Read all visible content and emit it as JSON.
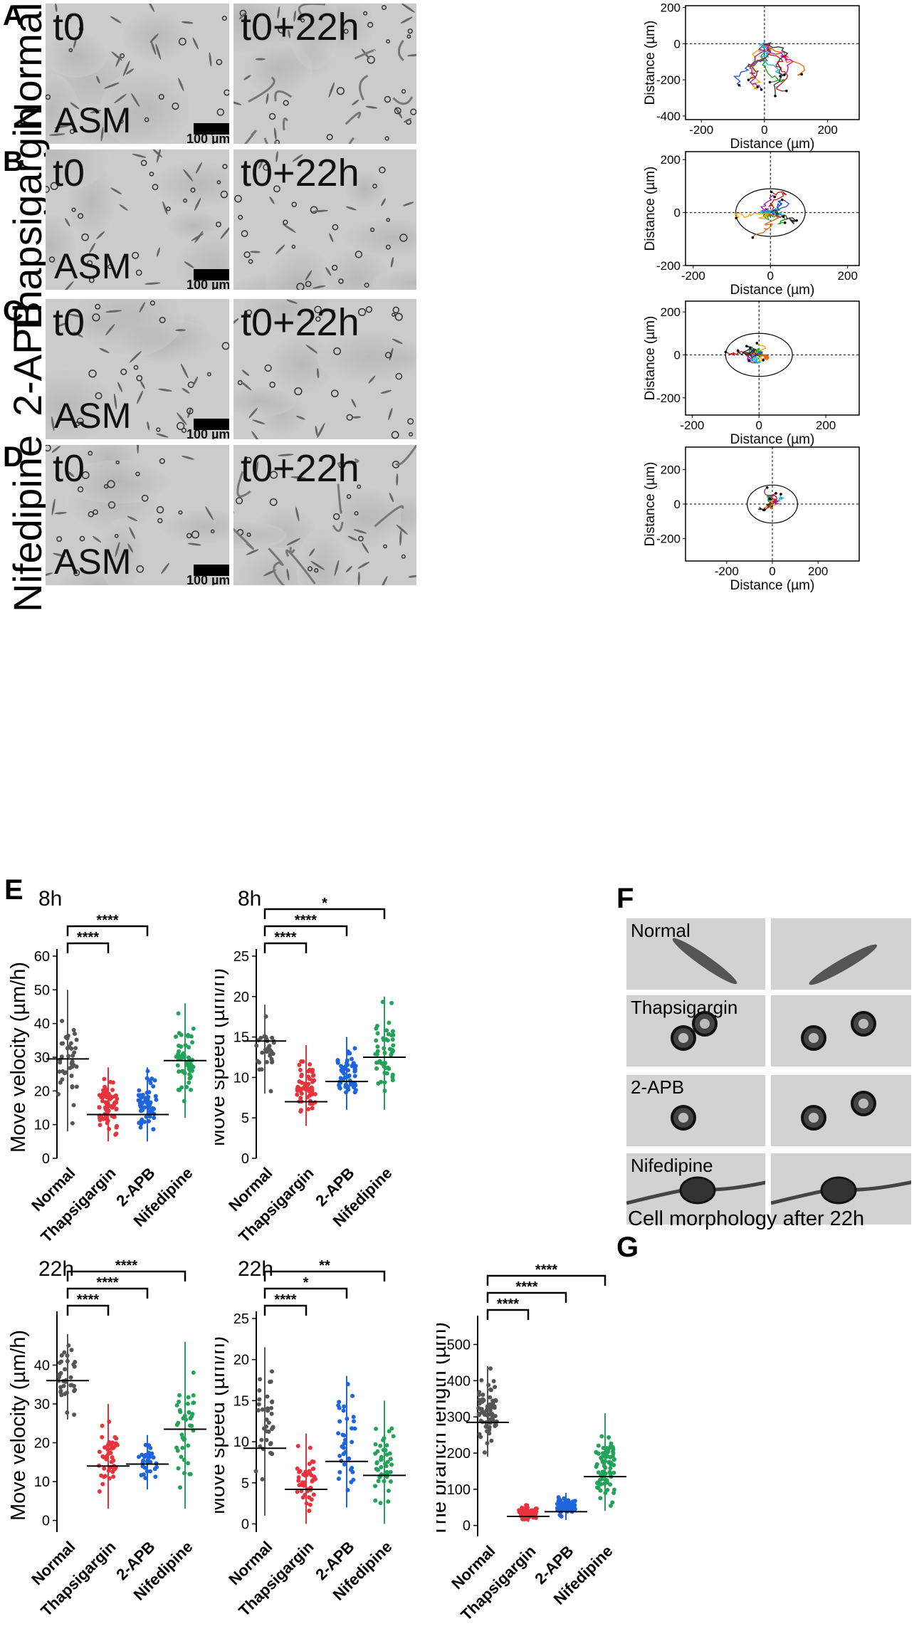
{
  "panels": [
    {
      "letter": "A",
      "condition": "Normal",
      "t0": "t0",
      "t22": "t0+22h",
      "asm": "ASM",
      "scale": "100 µm",
      "colors": [
        "#f5a800",
        "#1f4fd1",
        "#d01010",
        "#10a010",
        "#9b1aa8",
        "#1ab0e0",
        "#f06000",
        "#7a3010",
        "#e000a0",
        "#303030"
      ],
      "xlim": [
        -250,
        300
      ],
      "ylim": [
        -420,
        210
      ],
      "xticks": [
        -200,
        0,
        200
      ],
      "yticks": [
        200,
        0,
        -200,
        -400
      ],
      "radius": 0
    },
    {
      "letter": "B",
      "condition": "Thapsigargin",
      "t0": "t0",
      "t22": "t0+22h",
      "asm": "ASM",
      "scale": "100 µm",
      "colors": [
        "#d01010",
        "#f06000",
        "#9b1aa8",
        "#1f4fd1",
        "#10a010",
        "#f5a800",
        "#1ab0e0",
        "#303030"
      ],
      "xlim": [
        -220,
        230
      ],
      "ylim": [
        -200,
        230
      ],
      "xticks": [
        -200,
        0,
        200
      ],
      "yticks": [
        200,
        0,
        -200
      ],
      "radius": 90
    },
    {
      "letter": "C",
      "condition": "2-APB",
      "t0": "t0",
      "t22": "t0+22h",
      "asm": "ASM",
      "scale": "100 µm",
      "colors": [
        "#f5a800",
        "#1f4fd1",
        "#10a010",
        "#9b1aa8",
        "#d01010",
        "#1ab0e0",
        "#f06000",
        "#303030"
      ],
      "xlim": [
        -220,
        300
      ],
      "ylim": [
        -280,
        250
      ],
      "xticks": [
        -200,
        0,
        200
      ],
      "yticks": [
        200,
        0,
        -200
      ],
      "radius": 100
    },
    {
      "letter": "D",
      "condition": "Nifedipine",
      "t0": "t0",
      "t22": "t0+22h",
      "asm": "ASM",
      "scale": "100 µm",
      "colors": [
        "#1ab0e0",
        "#1f4fd1",
        "#10a010",
        "#d01010",
        "#f5a800",
        "#9b1aa8",
        "#f06000",
        "#303030"
      ],
      "xlim": [
        -380,
        380
      ],
      "ylim": [
        -330,
        330
      ],
      "xticks": [
        -200,
        0,
        200
      ],
      "yticks": [
        200,
        0,
        -200
      ],
      "radius": 110
    }
  ],
  "axis": {
    "x": "Distance (µm)",
    "y": "Distance (µm)"
  },
  "panel_letters": {
    "E": "E",
    "F": "F",
    "G": "G"
  },
  "groups": [
    "Normal",
    "Thapsigargin",
    "2-APB",
    "Nifedipine"
  ],
  "group_colors": [
    "#555555",
    "#e8323c",
    "#1e64dc",
    "#23a35a"
  ],
  "chart_data": [
    {
      "type": "scatter",
      "panel": "E",
      "timepoint": "8h",
      "ylabel": "Move velocity (µm/h)",
      "ylim": [
        0,
        60
      ],
      "yticks": [
        0,
        10,
        20,
        30,
        40,
        50,
        60
      ],
      "categories": [
        "Normal",
        "Thapsigargin",
        "2-APB",
        "Nifedipine"
      ],
      "means": [
        29.5,
        13,
        13,
        29
      ],
      "sd_range": [
        [
          8,
          50
        ],
        [
          5,
          27
        ],
        [
          5,
          27
        ],
        [
          12,
          46
        ]
      ],
      "n": [
        40,
        70,
        60,
        55
      ],
      "significance": [
        {
          "from": 0,
          "to": 1,
          "label": "****"
        },
        {
          "from": 0,
          "to": 2,
          "label": "****"
        }
      ]
    },
    {
      "type": "scatter",
      "panel": "E",
      "timepoint": "8h",
      "ylabel": "Move speed (µm/h)",
      "ylim": [
        0,
        25
      ],
      "yticks": [
        0,
        5,
        10,
        15,
        20,
        25
      ],
      "categories": [
        "Normal",
        "Thapsigargin",
        "2-APB",
        "Nifedipine"
      ],
      "means": [
        14.5,
        7,
        9.5,
        12.5
      ],
      "sd_range": [
        [
          8,
          19
        ],
        [
          4,
          14
        ],
        [
          6,
          15
        ],
        [
          6,
          20
        ]
      ],
      "n": [
        30,
        60,
        60,
        50
      ],
      "significance": [
        {
          "from": 0,
          "to": 1,
          "label": "****"
        },
        {
          "from": 0,
          "to": 2,
          "label": "****"
        },
        {
          "from": 0,
          "to": 3,
          "label": "*"
        }
      ]
    },
    {
      "type": "scatter",
      "panel": "E",
      "timepoint": "22h",
      "ylabel": "Move velocity (µm/h)",
      "ylim": [
        -3,
        52
      ],
      "yticks": [
        0,
        10,
        20,
        30,
        40
      ],
      "categories": [
        "Normal",
        "Thapsigargin",
        "2-APB",
        "Nifedipine"
      ],
      "means": [
        36,
        14,
        14.5,
        23.5
      ],
      "sd_range": [
        [
          26,
          48
        ],
        [
          3,
          30
        ],
        [
          8,
          22
        ],
        [
          3,
          46
        ]
      ],
      "n": [
        35,
        45,
        30,
        40
      ],
      "significance": [
        {
          "from": 0,
          "to": 1,
          "label": "****"
        },
        {
          "from": 0,
          "to": 2,
          "label": "****"
        },
        {
          "from": 0,
          "to": 3,
          "label": "****"
        }
      ]
    },
    {
      "type": "scatter",
      "panel": "E",
      "timepoint": "22h",
      "ylabel": "Move speed (µm/h)",
      "ylim": [
        -1,
        25
      ],
      "yticks": [
        0,
        5,
        10,
        15,
        20,
        25
      ],
      "categories": [
        "Normal",
        "Thapsigargin",
        "2-APB",
        "Nifedipine"
      ],
      "means": [
        9.2,
        4.2,
        7.6,
        5.9
      ],
      "sd_range": [
        [
          1,
          21.5
        ],
        [
          0,
          11
        ],
        [
          2,
          18
        ],
        [
          0,
          15
        ]
      ],
      "n": [
        35,
        45,
        35,
        45
      ],
      "significance": [
        {
          "from": 0,
          "to": 1,
          "label": "****"
        },
        {
          "from": 0,
          "to": 2,
          "label": "*"
        },
        {
          "from": 0,
          "to": 3,
          "label": "**"
        }
      ]
    },
    {
      "type": "scatter",
      "panel": "G",
      "timepoint": "",
      "ylabel": "The branch length (µm)",
      "ylim": [
        -30,
        560
      ],
      "yticks": [
        0,
        100,
        200,
        300,
        400,
        500
      ],
      "categories": [
        "Normal",
        "Thapsigargin",
        "2-APB",
        "Nifedipine"
      ],
      "means": [
        285,
        25,
        38,
        135
      ],
      "sd_range": [
        [
          190,
          440
        ],
        [
          10,
          60
        ],
        [
          15,
          90
        ],
        [
          40,
          310
        ]
      ],
      "n": [
        80,
        80,
        80,
        80
      ],
      "significance": [
        {
          "from": 0,
          "to": 1,
          "label": "****"
        },
        {
          "from": 0,
          "to": 2,
          "label": "****"
        },
        {
          "from": 0,
          "to": 3,
          "label": "****"
        }
      ]
    }
  ],
  "morphology": {
    "rows": [
      "Normal",
      "Thapsigargin",
      "2-APB",
      "Nifedipine"
    ],
    "caption": "Cell morphology after 22h"
  }
}
